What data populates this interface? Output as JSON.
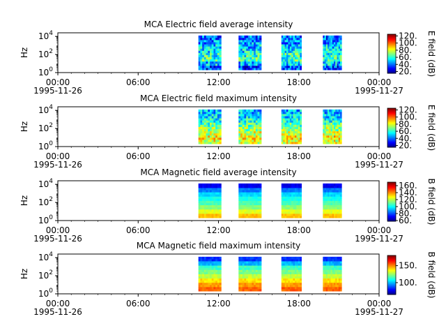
{
  "chart_data": [
    {
      "type": "heatmap",
      "title": "MCA  Electric field average intensity",
      "ylabel": "Hz",
      "colorbar_label": "E field (dB)",
      "colorbar_ticks": [
        "20.",
        "40.",
        "60.",
        "80.",
        "100.",
        "120."
      ],
      "clim": [
        15,
        125
      ],
      "y_ticks": [
        {
          "base": "10",
          "exp": "0"
        },
        {
          "base": "10",
          "exp": "2"
        },
        {
          "base": "10",
          "exp": "4"
        }
      ],
      "x_ticks": [
        "00:00",
        "06:00",
        "12:00",
        "18:00",
        "00:00"
      ],
      "x_dates": [
        "1995-11-26",
        "1995-11-27"
      ],
      "xlim_hours": [
        0,
        24
      ],
      "ylim_log10": [
        0,
        4.4
      ],
      "data_intervals_hours": [
        [
          10.5,
          12.2
        ],
        [
          13.5,
          15.2
        ],
        [
          16.7,
          18.2
        ],
        [
          19.8,
          21.2
        ]
      ],
      "freq_range_log10": [
        0.3,
        4.1
      ],
      "level_profile": [
        35,
        50,
        62,
        60,
        55,
        50,
        45,
        40
      ],
      "level_variability": 18
    },
    {
      "type": "heatmap",
      "title": "MCA  Electric field maximum intensity",
      "ylabel": "Hz",
      "colorbar_label": "E field (dB)",
      "colorbar_ticks": [
        "20.",
        "40.",
        "60.",
        "80.",
        "100.",
        "120."
      ],
      "clim": [
        15,
        125
      ],
      "y_ticks": [
        {
          "base": "10",
          "exp": "0"
        },
        {
          "base": "10",
          "exp": "2"
        },
        {
          "base": "10",
          "exp": "4"
        }
      ],
      "x_ticks": [
        "00:00",
        "06:00",
        "12:00",
        "18:00",
        "00:00"
      ],
      "x_dates": [
        "1995-11-26",
        "1995-11-27"
      ],
      "xlim_hours": [
        0,
        24
      ],
      "ylim_log10": [
        0,
        4.4
      ],
      "data_intervals_hours": [
        [
          10.5,
          12.2
        ],
        [
          13.5,
          15.2
        ],
        [
          16.7,
          18.2
        ],
        [
          19.8,
          21.2
        ]
      ],
      "freq_range_log10": [
        0.3,
        4.1
      ],
      "level_profile": [
        80,
        85,
        78,
        72,
        65,
        58,
        52,
        48
      ],
      "level_variability": 16
    },
    {
      "type": "heatmap",
      "title": "MCA  Magnetic field average intensity",
      "ylabel": "Hz",
      "colorbar_label": "B field (dB)",
      "colorbar_ticks": [
        "60.",
        "80.",
        "100.",
        "120.",
        "140.",
        "160."
      ],
      "clim": [
        58,
        170
      ],
      "y_ticks": [
        {
          "base": "10",
          "exp": "0"
        },
        {
          "base": "10",
          "exp": "2"
        },
        {
          "base": "10",
          "exp": "4"
        }
      ],
      "x_ticks": [
        "00:00",
        "06:00",
        "12:00",
        "18:00",
        "00:00"
      ],
      "x_dates": [
        "1995-11-26",
        "1995-11-27"
      ],
      "xlim_hours": [
        0,
        24
      ],
      "ylim_log10": [
        0,
        4.4
      ],
      "data_intervals_hours": [
        [
          10.5,
          12.2
        ],
        [
          13.5,
          15.2
        ],
        [
          16.7,
          18.2
        ],
        [
          19.8,
          21.2
        ]
      ],
      "freq_range_log10": [
        0.3,
        4.1
      ],
      "level_profile": [
        135,
        125,
        115,
        108,
        102,
        96,
        85,
        70
      ],
      "level_variability": 3
    },
    {
      "type": "heatmap",
      "title": "MCA  Magnetic field maximum intensity",
      "ylabel": "Hz",
      "colorbar_label": "B field (dB)",
      "colorbar_ticks": [
        "100.",
        "150."
      ],
      "clim": [
        65,
        180
      ],
      "y_ticks": [
        {
          "base": "10",
          "exp": "0"
        },
        {
          "base": "10",
          "exp": "2"
        },
        {
          "base": "10",
          "exp": "4"
        }
      ],
      "x_ticks": [
        "00:00",
        "06:00",
        "12:00",
        "18:00",
        "00:00"
      ],
      "x_dates": [
        "1995-11-26",
        "1995-11-27"
      ],
      "xlim_hours": [
        0,
        24
      ],
      "ylim_log10": [
        0,
        4.4
      ],
      "data_intervals_hours": [
        [
          10.5,
          12.2
        ],
        [
          13.5,
          15.2
        ],
        [
          16.7,
          18.2
        ],
        [
          19.8,
          21.2
        ]
      ],
      "freq_range_log10": [
        0.3,
        4.1
      ],
      "level_profile": [
        155,
        148,
        140,
        130,
        122,
        115,
        100,
        85
      ],
      "level_variability": 4
    }
  ]
}
